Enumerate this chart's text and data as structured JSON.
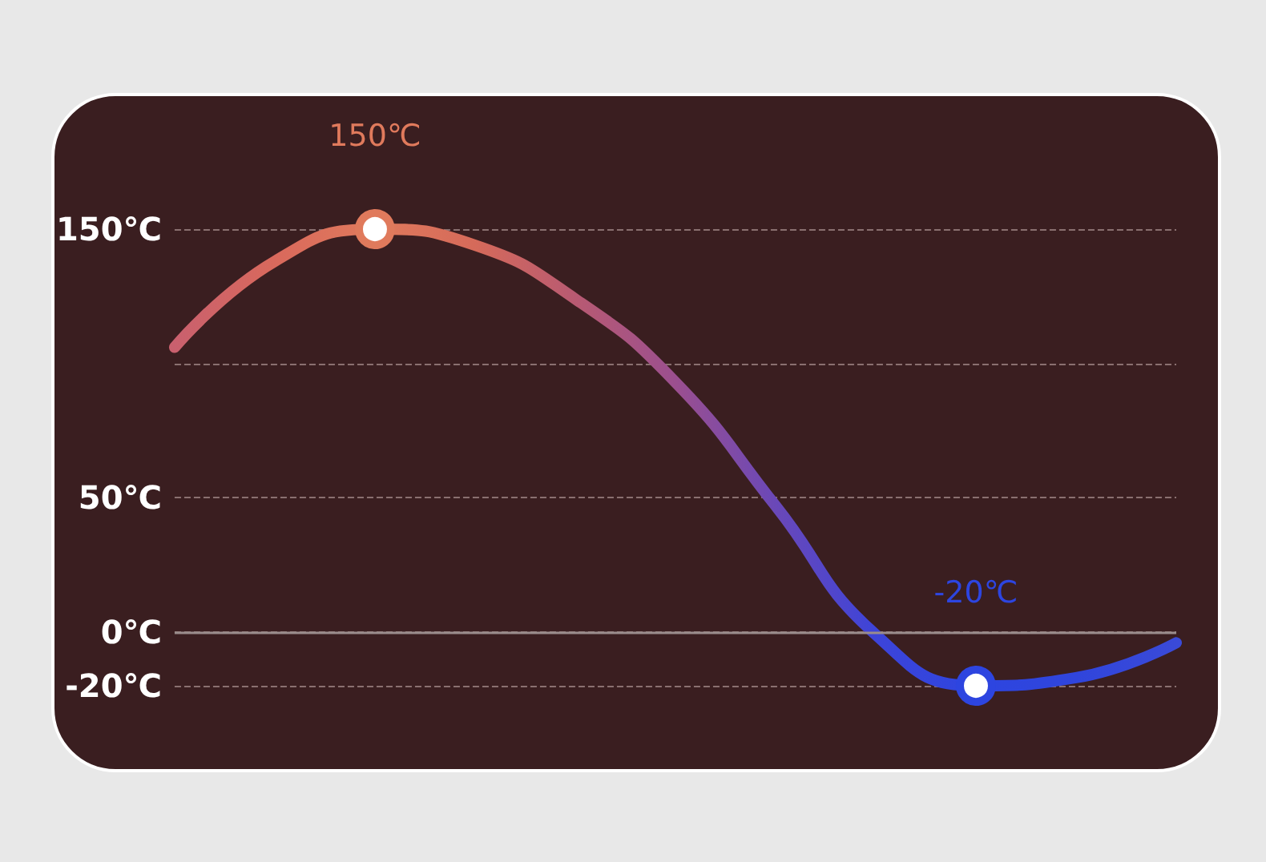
{
  "chart_data": {
    "type": "line",
    "categories": [
      null,
      null,
      null,
      null,
      null,
      null,
      null,
      null,
      null,
      null,
      null
    ],
    "series": [
      {
        "values": [
          106,
          138,
          150,
          144,
          124,
          93,
          47,
          -1,
          -20,
          -17,
          -4
        ],
        "value_labels": [
          null,
          null,
          "150℃",
          null,
          null,
          null,
          null,
          null,
          "-20℃",
          null,
          null
        ],
        "colors": [
          "#c9606e",
          "#d9695c",
          "#e07a5c",
          "#d56a5a",
          "#b85a72",
          "#9b4f8f",
          "#6a48b8",
          "#3d44d9",
          "#2d45e0",
          "#3045dc",
          "#3a4ad8"
        ]
      }
    ],
    "ylim": [
      -20,
      150
    ],
    "yticks": [
      {
        "value": -20,
        "label": "-20℃"
      },
      {
        "value": 0,
        "label": "0℃"
      },
      {
        "value": 50,
        "label": "50℃"
      },
      {
        "value": 100,
        "label": null
      },
      {
        "value": 150,
        "label": "150℃"
      }
    ],
    "grid": "y",
    "tick_labels": "y"
  }
}
